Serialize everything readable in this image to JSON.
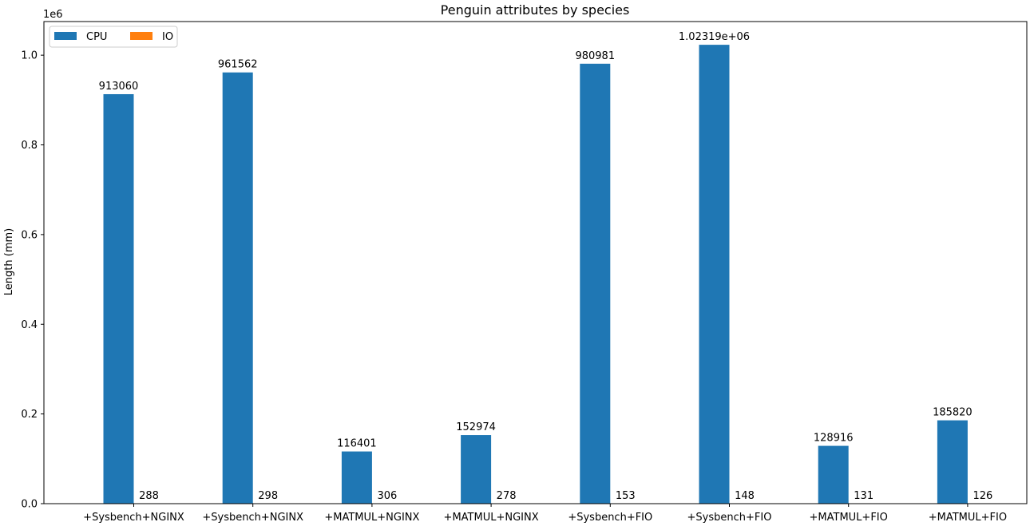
{
  "chart_data": {
    "type": "bar",
    "title": "Penguin attributes by species",
    "xlabel": "",
    "ylabel": "Length (mm)",
    "y_offset_label": "1e6",
    "ylim": [
      0,
      1075000
    ],
    "yticks": [
      0.0,
      0.2,
      0.4,
      0.6,
      0.8,
      1.0
    ],
    "ytick_labels": [
      "0.0",
      "0.2",
      "0.4",
      "0.6",
      "0.8",
      "1.0"
    ],
    "y_scale_factor": 1000000,
    "grid": false,
    "legend_position": "top-left",
    "categories": [
      "+Sysbench+NGINX",
      "+Sysbench+NGINX",
      "+MATMUL+NGINX",
      "+MATMUL+NGINX",
      "+Sysbench+FIO",
      "+Sysbench+FIO",
      "+MATMUL+FIO",
      "+MATMUL+FIO"
    ],
    "series": [
      {
        "name": "CPU",
        "color": "#1f77b4",
        "values": [
          913060,
          961562,
          116401,
          152974,
          980981,
          1023190,
          128916,
          185820
        ],
        "labels": [
          "913060",
          "961562",
          "116401",
          "152974",
          "980981",
          "1.02319e+06",
          "128916",
          "185820"
        ]
      },
      {
        "name": "IO",
        "color": "#ff7f0e",
        "values": [
          288,
          298,
          306,
          278,
          153,
          148,
          131,
          126
        ],
        "labels": [
          "288",
          "298",
          "306",
          "278",
          "153",
          "148",
          "131",
          "126"
        ]
      }
    ]
  }
}
